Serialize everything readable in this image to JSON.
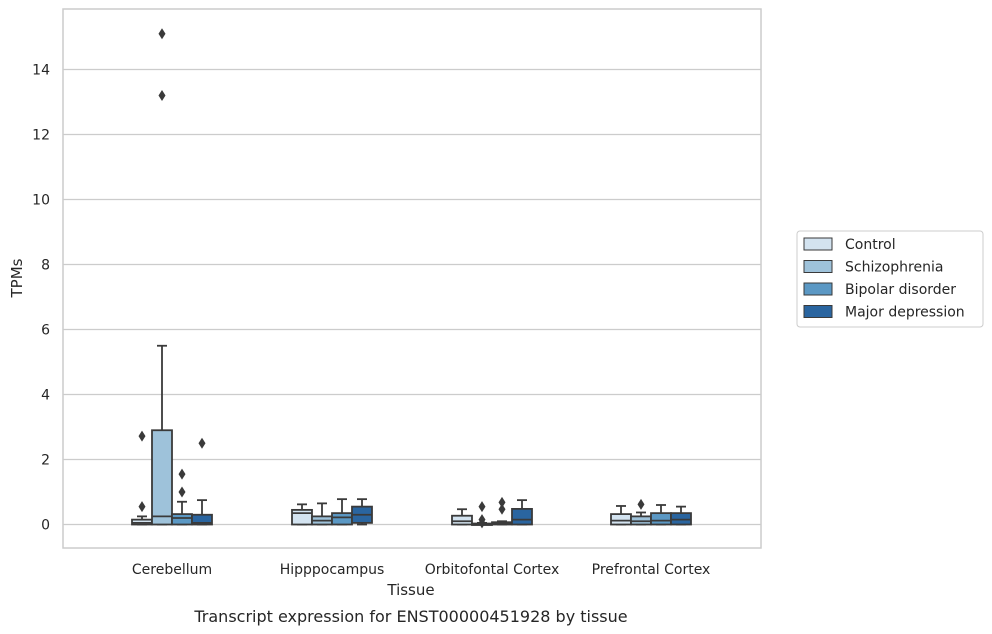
{
  "chart_data": {
    "type": "box",
    "caption": "Transcript expression for ENST00000451928 by tissue",
    "xlabel": "Tissue",
    "ylabel": "TPMs",
    "ylim": [
      -0.7,
      15.5
    ],
    "yticks": [
      0,
      2,
      4,
      6,
      8,
      10,
      12,
      14
    ],
    "grid": true,
    "legend_position": "right",
    "categories": [
      "Cerebellum",
      "Hipppocampus",
      "Orbitofontal Cortex",
      "Prefrontal Cortex"
    ],
    "series": [
      {
        "name": "Control",
        "color": "#d3e3f0",
        "boxes": [
          {
            "whislo": 0,
            "q1": 0,
            "med": 0.05,
            "q3": 0.15,
            "whishi": 0.25,
            "fliers": [
              0.55,
              2.72
            ]
          },
          {
            "whislo": 0,
            "q1": 0,
            "med": 0.35,
            "q3": 0.45,
            "whishi": 0.62,
            "fliers": []
          },
          {
            "whislo": 0,
            "q1": 0,
            "med": 0.1,
            "q3": 0.27,
            "whishi": 0.47,
            "fliers": []
          },
          {
            "whislo": 0,
            "q1": 0,
            "med": 0.12,
            "q3": 0.32,
            "whishi": 0.57,
            "fliers": []
          }
        ]
      },
      {
        "name": "Schizophrenia",
        "color": "#9ec2da",
        "boxes": [
          {
            "whislo": 0,
            "q1": 0,
            "med": 0.25,
            "q3": 2.9,
            "whishi": 5.5,
            "fliers": [
              13.2,
              15.1
            ]
          },
          {
            "whislo": 0,
            "q1": 0,
            "med": 0.12,
            "q3": 0.25,
            "whishi": 0.65,
            "fliers": []
          },
          {
            "whislo": 0,
            "q1": 0,
            "med": 0.01,
            "q3": 0.03,
            "whishi": 0.05,
            "fliers": [
              0.05,
              0.15,
              0.55
            ]
          },
          {
            "whislo": 0,
            "q1": 0,
            "med": 0.1,
            "q3": 0.25,
            "whishi": 0.37,
            "fliers": [
              0.62
            ]
          }
        ]
      },
      {
        "name": "Bipolar disorder",
        "color": "#5b98c4",
        "boxes": [
          {
            "whislo": 0,
            "q1": 0,
            "med": 0.2,
            "q3": 0.32,
            "whishi": 0.7,
            "fliers": [
              1.0,
              1.55
            ]
          },
          {
            "whislo": 0,
            "q1": 0,
            "med": 0.22,
            "q3": 0.35,
            "whishi": 0.78,
            "fliers": []
          },
          {
            "whislo": 0,
            "q1": 0,
            "med": 0.03,
            "q3": 0.07,
            "whishi": 0.1,
            "fliers": [
              0.47,
              0.68
            ]
          },
          {
            "whislo": 0,
            "q1": 0,
            "med": 0.12,
            "q3": 0.35,
            "whishi": 0.6,
            "fliers": []
          }
        ]
      },
      {
        "name": "Major depression",
        "color": "#2a65a0",
        "boxes": [
          {
            "whislo": 0,
            "q1": 0,
            "med": 0.05,
            "q3": 0.3,
            "whishi": 0.75,
            "fliers": [
              2.5
            ]
          },
          {
            "whislo": 0,
            "q1": 0.05,
            "med": 0.3,
            "q3": 0.55,
            "whishi": 0.78,
            "fliers": []
          },
          {
            "whislo": 0,
            "q1": 0,
            "med": 0.15,
            "q3": 0.48,
            "whishi": 0.75,
            "fliers": []
          },
          {
            "whislo": 0,
            "q1": 0,
            "med": 0.15,
            "q3": 0.35,
            "whishi": 0.55,
            "fliers": []
          }
        ]
      }
    ]
  }
}
